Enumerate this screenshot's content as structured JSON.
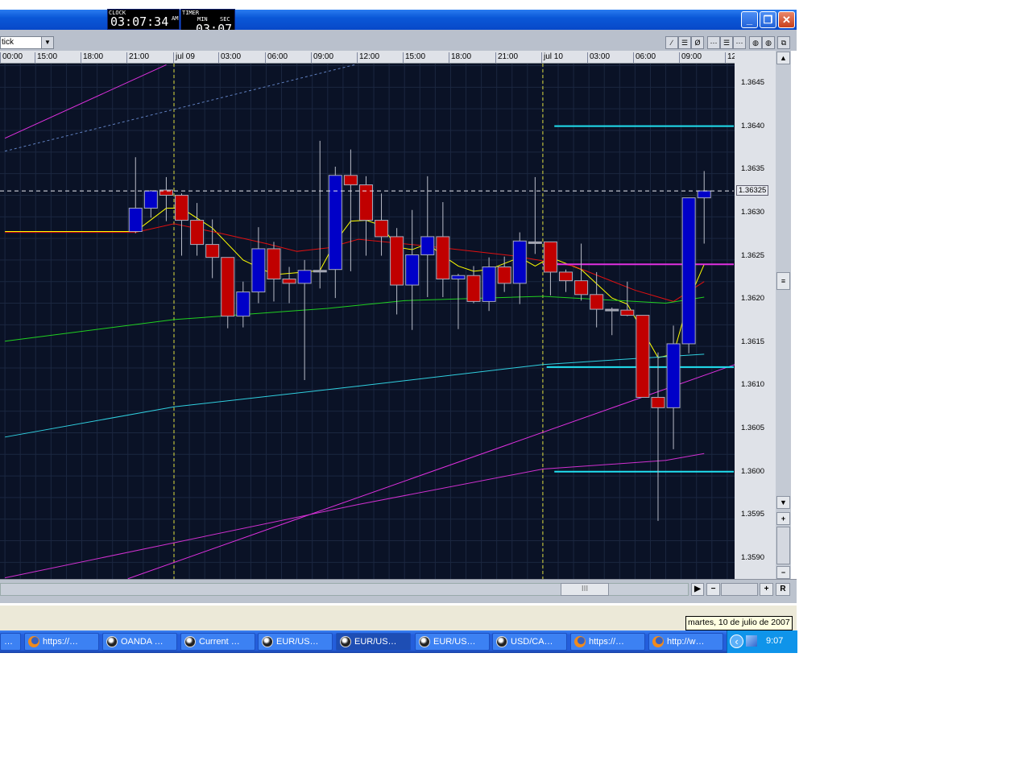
{
  "window": {
    "buttons": {
      "minimize": "_",
      "restore": "❐",
      "close": "✕"
    }
  },
  "clock": {
    "label": "CLOCK",
    "time": "03:07:34",
    "ampm": "AM"
  },
  "timer": {
    "label": "TIMER",
    "min_label": "MIN",
    "sec_label": "SEC",
    "value": "03:07"
  },
  "toolbar": {
    "chart_type_value": "tick",
    "icons": [
      "trendline-icon",
      "horizontal-line-icon",
      "fibonacci-icon",
      "grid-fine-icon",
      "grid-medium-icon",
      "grid-coarse-icon",
      "color-scheme-icon",
      "texture-icon",
      "detach-window-icon"
    ],
    "icon_glyphs": [
      "∕",
      "☰",
      "Ø",
      "⋯",
      "☰",
      "⋯",
      "◍",
      "◍",
      "⧉"
    ]
  },
  "time_axis": [
    "00:00",
    "15:00",
    "18:00",
    "21:00",
    "jul 09",
    "03:00",
    "06:00",
    "09:00",
    "12:00",
    "15:00",
    "18:00",
    "21:00",
    "jul 10",
    "03:00",
    "06:00",
    "09:00",
    "12"
  ],
  "price_axis": [
    "1.3645",
    "1.3640",
    "1.3635",
    "1.3630",
    "1.3625",
    "1.3620",
    "1.3615",
    "1.3610",
    "1.3605",
    "1.3600",
    "1.3595",
    "1.3590"
  ],
  "current_price": "1.36325",
  "colors": {
    "background": "#0a1226",
    "bull": "#0000c8",
    "bear": "#c00000",
    "doji": "#a0a0a8",
    "grid": "#1b2740",
    "day_separator": "#e0e040"
  },
  "chart_data": {
    "type": "candlestick",
    "timeframe": "1 hour",
    "ylim": [
      1.35875,
      1.36475
    ],
    "xlim": [
      "07-08 12:40",
      "07-10 12:40"
    ],
    "grid": true,
    "candles": [
      {
        "t": "07-08 21:00",
        "o": 1.36278,
        "h": 1.36364,
        "l": 1.36276,
        "c": 1.36305
      },
      {
        "t": "07-08 22:00",
        "o": 1.36305,
        "h": 1.36326,
        "l": 1.36294,
        "c": 1.36325
      },
      {
        "t": "07-08 23:00",
        "o": 1.36326,
        "h": 1.36341,
        "l": 1.3629,
        "c": 1.3632
      },
      {
        "t": "07-09 00:00",
        "o": 1.3632,
        "h": 1.36322,
        "l": 1.3625,
        "c": 1.36291
      },
      {
        "t": "07-09 01:00",
        "o": 1.36291,
        "h": 1.36311,
        "l": 1.3625,
        "c": 1.36263
      },
      {
        "t": "07-09 02:00",
        "o": 1.36263,
        "h": 1.36292,
        "l": 1.36224,
        "c": 1.36248
      },
      {
        "t": "07-09 03:00",
        "o": 1.36248,
        "h": 1.36248,
        "l": 1.36166,
        "c": 1.3618
      },
      {
        "t": "07-09 04:00",
        "o": 1.3618,
        "h": 1.3622,
        "l": 1.36167,
        "c": 1.36208
      },
      {
        "t": "07-09 05:00",
        "o": 1.36208,
        "h": 1.36283,
        "l": 1.36195,
        "c": 1.36258
      },
      {
        "t": "07-09 06:00",
        "o": 1.36258,
        "h": 1.36266,
        "l": 1.36197,
        "c": 1.36223
      },
      {
        "t": "07-09 07:00",
        "o": 1.36223,
        "h": 1.36237,
        "l": 1.36195,
        "c": 1.36218
      },
      {
        "t": "07-09 08:00",
        "o": 1.36218,
        "h": 1.36245,
        "l": 1.36106,
        "c": 1.36233
      },
      {
        "t": "07-09 09:00",
        "o": 1.36233,
        "h": 1.36383,
        "l": 1.36212,
        "c": 1.36233
      },
      {
        "t": "07-09 10:00",
        "o": 1.36234,
        "h": 1.36353,
        "l": 1.36201,
        "c": 1.36343
      },
      {
        "t": "07-09 11:00",
        "o": 1.36343,
        "h": 1.36373,
        "l": 1.36232,
        "c": 1.36332
      },
      {
        "t": "07-09 12:00",
        "o": 1.36332,
        "h": 1.36342,
        "l": 1.3625,
        "c": 1.36291
      },
      {
        "t": "07-09 13:00",
        "o": 1.36291,
        "h": 1.36322,
        "l": 1.3625,
        "c": 1.36272
      },
      {
        "t": "07-09 14:00",
        "o": 1.36272,
        "h": 1.36282,
        "l": 1.36182,
        "c": 1.36216
      },
      {
        "t": "07-09 15:00",
        "o": 1.36216,
        "h": 1.36303,
        "l": 1.36164,
        "c": 1.36251
      },
      {
        "t": "07-09 16:00",
        "o": 1.36251,
        "h": 1.36342,
        "l": 1.36202,
        "c": 1.36272
      },
      {
        "t": "07-09 17:00",
        "o": 1.36272,
        "h": 1.36312,
        "l": 1.36202,
        "c": 1.36223
      },
      {
        "t": "07-09 18:00",
        "o": 1.36223,
        "h": 1.36229,
        "l": 1.36165,
        "c": 1.36227
      },
      {
        "t": "07-09 19:00",
        "o": 1.36227,
        "h": 1.36238,
        "l": 1.36195,
        "c": 1.36197
      },
      {
        "t": "07-09 20:00",
        "o": 1.36197,
        "h": 1.36248,
        "l": 1.36186,
        "c": 1.36237
      },
      {
        "t": "07-09 21:00",
        "o": 1.36237,
        "h": 1.36249,
        "l": 1.36208,
        "c": 1.36218
      },
      {
        "t": "07-09 22:00",
        "o": 1.36218,
        "h": 1.36277,
        "l": 1.36194,
        "c": 1.36267
      },
      {
        "t": "07-09 23:00",
        "o": 1.36266,
        "h": 1.36341,
        "l": 1.36252,
        "c": 1.36266
      },
      {
        "t": "07-10 00:00",
        "o": 1.36266,
        "h": 1.36266,
        "l": 1.36204,
        "c": 1.36231
      },
      {
        "t": "07-10 01:00",
        "o": 1.36231,
        "h": 1.36234,
        "l": 1.36208,
        "c": 1.36221
      },
      {
        "t": "07-10 02:00",
        "o": 1.36221,
        "h": 1.36264,
        "l": 1.36198,
        "c": 1.36205
      },
      {
        "t": "07-10 03:00",
        "o": 1.36205,
        "h": 1.36231,
        "l": 1.36167,
        "c": 1.36188
      },
      {
        "t": "07-10 04:00",
        "o": 1.36188,
        "h": 1.3619,
        "l": 1.36158,
        "c": 1.36188
      },
      {
        "t": "07-10 05:00",
        "o": 1.36187,
        "h": 1.3622,
        "l": 1.3618,
        "c": 1.36181
      },
      {
        "t": "07-10 06:00",
        "o": 1.36181,
        "h": 1.36181,
        "l": 1.36086,
        "c": 1.36086
      },
      {
        "t": "07-10 07:00",
        "o": 1.36086,
        "h": 1.36138,
        "l": 1.35943,
        "c": 1.36074
      },
      {
        "t": "07-10 08:00",
        "o": 1.36074,
        "h": 1.36169,
        "l": 1.36026,
        "c": 1.36148
      },
      {
        "t": "07-10 09:00",
        "o": 1.36148,
        "h": 1.36317,
        "l": 1.36137,
        "c": 1.36317
      },
      {
        "t": "07-10 10:00",
        "o": 1.36317,
        "h": 1.36348,
        "l": 1.36264,
        "c": 1.36325
      }
    ],
    "indicators": [
      {
        "color": "#ffff00",
        "points": [
          [
            "07-08 13:00",
            1.36278
          ],
          [
            "07-08 21:30",
            1.36278
          ],
          [
            "07-08 23:30",
            1.36305
          ],
          [
            "07-09 00:30",
            1.36305
          ],
          [
            "07-09 02:30",
            1.36282
          ],
          [
            "07-09 04:30",
            1.36245
          ],
          [
            "07-09 06:30",
            1.36228
          ],
          [
            "07-09 08:30",
            1.36231
          ],
          [
            "07-09 09:30",
            1.36233
          ],
          [
            "07-09 10:30",
            1.36266
          ],
          [
            "07-09 11:30",
            1.3629
          ],
          [
            "07-09 12:30",
            1.36291
          ],
          [
            "07-09 13:30",
            1.36285
          ],
          [
            "07-09 14:30",
            1.3626
          ],
          [
            "07-09 15:30",
            1.36257
          ],
          [
            "07-09 16:30",
            1.36264
          ],
          [
            "07-09 17:30",
            1.3625
          ],
          [
            "07-09 18:30",
            1.36238
          ],
          [
            "07-09 19:30",
            1.36232
          ],
          [
            "07-09 20:30",
            1.36234
          ],
          [
            "07-09 22:30",
            1.36248
          ],
          [
            "07-09 23:30",
            1.36238
          ],
          [
            "07-10 00:30",
            1.36248
          ],
          [
            "07-10 02:30",
            1.36234
          ],
          [
            "07-10 04:30",
            1.36201
          ],
          [
            "07-10 05:30",
            1.36194
          ],
          [
            "07-10 07:30",
            1.36132
          ],
          [
            "07-10 08:30",
            1.36136
          ],
          [
            "07-10 09:30",
            1.36199
          ],
          [
            "07-10 10:30",
            1.3624
          ]
        ]
      },
      {
        "color": "#e01010",
        "points": [
          [
            "07-08 13:00",
            1.36277
          ],
          [
            "07-08 21:30",
            1.36277
          ],
          [
            "07-09 00:00",
            1.36287
          ],
          [
            "07-09 03:00",
            1.36276
          ],
          [
            "07-09 06:00",
            1.36264
          ],
          [
            "07-09 08:00",
            1.36255
          ],
          [
            "07-09 10:00",
            1.36259
          ],
          [
            "07-09 12:00",
            1.36269
          ],
          [
            "07-09 16:00",
            1.36262
          ],
          [
            "07-09 22:00",
            1.3625
          ],
          [
            "07-10 02:00",
            1.36238
          ],
          [
            "07-10 06:00",
            1.3621
          ],
          [
            "07-10 08:30",
            1.36197
          ],
          [
            "07-10 10:30",
            1.3622
          ]
        ]
      },
      {
        "color": "#20d020",
        "points": [
          [
            "07-08 13:00",
            1.36151
          ],
          [
            "07-09 00:00",
            1.36176
          ],
          [
            "07-09 10:00",
            1.36189
          ],
          [
            "07-09 15:00",
            1.36198
          ],
          [
            "07-10 00:00",
            1.36203
          ],
          [
            "07-10 08:00",
            1.36195
          ],
          [
            "07-10 10:30",
            1.36202
          ]
        ]
      },
      {
        "color": "#30d0e0",
        "points": [
          [
            "07-08 13:00",
            1.3604
          ],
          [
            "07-09 00:00",
            1.36075
          ],
          [
            "07-09 12:00",
            1.36099
          ],
          [
            "07-10 00:00",
            1.36124
          ],
          [
            "07-10 10:30",
            1.36136
          ]
        ]
      },
      {
        "color": "#d030d0",
        "points": [
          [
            "07-08 13:00",
            1.35877
          ],
          [
            "07-09 12:00",
            1.35962
          ],
          [
            "07-10 00:00",
            1.36003
          ],
          [
            "07-10 08:00",
            1.36013
          ],
          [
            "07-10 10:30",
            1.36021
          ]
        ]
      }
    ],
    "trendlines": [
      {
        "color": "#e030e0",
        "from": [
          "07-08 21:00",
          1.35876
        ],
        "to": [
          "07-10 12:30",
          1.36124
        ]
      },
      {
        "color": "#e030e0",
        "from": [
          "07-08 13:00",
          1.36386
        ],
        "to": [
          "07-08 23:30",
          1.36471
        ]
      },
      {
        "color": "#6080c0",
        "dashed": true,
        "from": [
          "07-08 13:00",
          1.36371
        ],
        "to": [
          "07-09 11:45",
          1.36471
        ]
      }
    ],
    "horizontal_lines": [
      {
        "color": "#20e0f0",
        "price": 1.364,
        "from": "07-10 00:45"
      },
      {
        "color": "#20e0f0",
        "price": 1.36121,
        "from": "07-10 00:15"
      },
      {
        "color": "#20e0f0",
        "price": 1.36,
        "from": "07-10 00:45"
      },
      {
        "color": "#e030e0",
        "price": 1.3624,
        "from": "07-10 00:00"
      }
    ],
    "day_separators": [
      "07-09 00:00",
      "07-10 00:00"
    ]
  },
  "bottom_bar": {
    "thumb": "III",
    "right": "▶",
    "minus": "−",
    "plus": "+",
    "reset": "R"
  },
  "vscroll": {
    "up": "▲",
    "thumb": "≡",
    "down": "▼",
    "plus": "+",
    "minus": "−"
  },
  "tooltip": "martes, 10 de julio de 2007",
  "taskbar": {
    "items": [
      {
        "label": "…",
        "icon": "app"
      },
      {
        "label": "https://…",
        "icon": "firefox"
      },
      {
        "label": "OANDA …",
        "icon": "oanda"
      },
      {
        "label": "Current …",
        "icon": "oanda"
      },
      {
        "label": "EUR/US…",
        "icon": "oanda"
      },
      {
        "label": "EUR/US…",
        "icon": "oanda",
        "active": true
      },
      {
        "label": "EUR/US…",
        "icon": "oanda"
      },
      {
        "label": "USD/CA…",
        "icon": "oanda"
      },
      {
        "label": "https://…",
        "icon": "firefox"
      },
      {
        "label": "http://w…",
        "icon": "firefox"
      }
    ],
    "tray_chevron": "‹",
    "clock": "9:07"
  }
}
